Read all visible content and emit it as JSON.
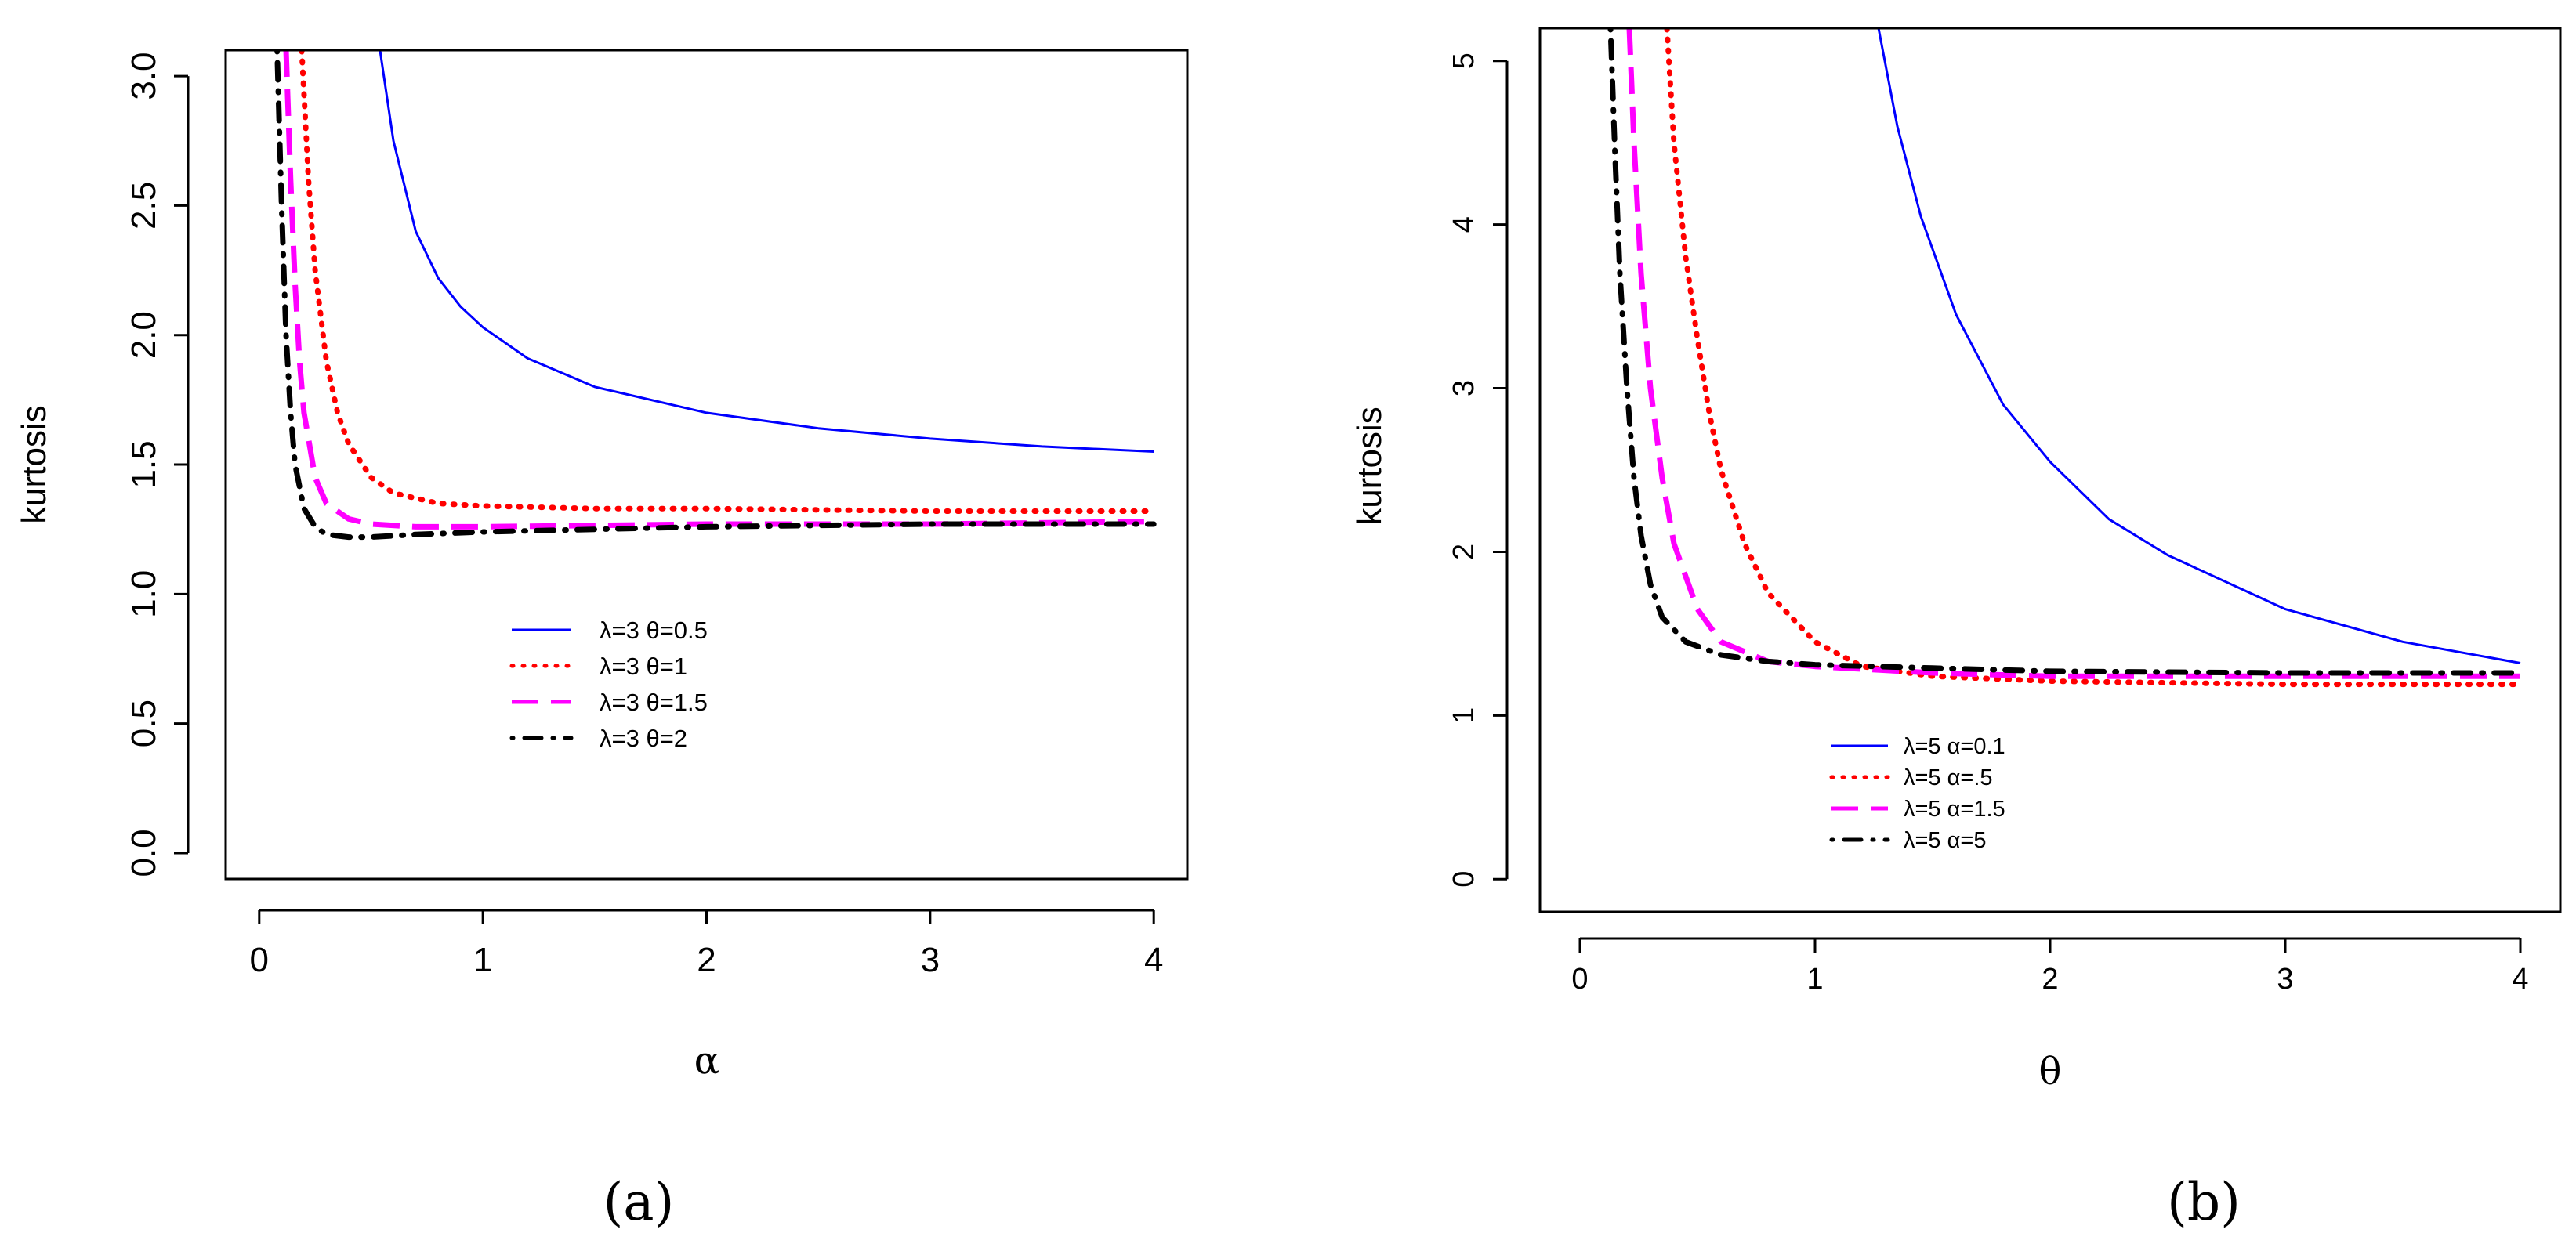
{
  "chart_data": [
    {
      "type": "line",
      "panel_label": "(a)",
      "xlabel": "α",
      "ylabel": "kurtosis",
      "xlim": [
        -0.15,
        4.15
      ],
      "ylim": [
        -0.1,
        3.1
      ],
      "xticks": [
        0,
        1,
        2,
        3,
        4
      ],
      "yticks": [
        0.0,
        0.5,
        1.0,
        1.5,
        2.0,
        2.5,
        3.0
      ],
      "ytick_labels": [
        "0.0",
        "0.5",
        "1.0",
        "1.5",
        "2.0",
        "2.5",
        "3.0"
      ],
      "legend_position": "center",
      "series": [
        {
          "name": "λ=3 θ=0.5",
          "color": "#0000ff",
          "style": "solid",
          "x": [
            0.54,
            0.6,
            0.7,
            0.8,
            0.9,
            1.0,
            1.2,
            1.5,
            2.0,
            2.5,
            3.0,
            3.5,
            4.0
          ],
          "y": [
            3.1,
            2.75,
            2.4,
            2.22,
            2.11,
            2.03,
            1.91,
            1.8,
            1.7,
            1.64,
            1.6,
            1.57,
            1.55
          ]
        },
        {
          "name": "λ=3 θ=1",
          "color": "#ff0000",
          "style": "dotted",
          "x": [
            0.19,
            0.22,
            0.25,
            0.3,
            0.35,
            0.4,
            0.5,
            0.6,
            0.8,
            1.0,
            1.5,
            2.0,
            3.0,
            4.0
          ],
          "y": [
            3.1,
            2.6,
            2.25,
            1.9,
            1.7,
            1.58,
            1.45,
            1.39,
            1.35,
            1.34,
            1.33,
            1.33,
            1.32,
            1.32
          ]
        },
        {
          "name": "λ=3 θ=1.5",
          "color": "#ff00ff",
          "style": "dashed",
          "x": [
            0.12,
            0.14,
            0.16,
            0.18,
            0.2,
            0.25,
            0.3,
            0.4,
            0.5,
            0.7,
            1.0,
            2.0,
            3.0,
            4.0
          ],
          "y": [
            3.1,
            2.6,
            2.2,
            1.9,
            1.7,
            1.45,
            1.35,
            1.29,
            1.27,
            1.26,
            1.26,
            1.27,
            1.27,
            1.28
          ]
        },
        {
          "name": "λ=3 θ=2",
          "color": "#000000",
          "style": "dotdash",
          "x": [
            0.08,
            0.1,
            0.12,
            0.14,
            0.16,
            0.2,
            0.25,
            0.3,
            0.4,
            0.5,
            0.7,
            1.0,
            2.0,
            3.0,
            4.0
          ],
          "y": [
            3.1,
            2.5,
            2.0,
            1.7,
            1.5,
            1.33,
            1.26,
            1.23,
            1.22,
            1.22,
            1.23,
            1.24,
            1.26,
            1.27,
            1.27
          ]
        }
      ]
    },
    {
      "type": "line",
      "panel_label": "(b)",
      "xlabel": "θ",
      "ylabel": "kurtosis",
      "xlim": [
        -0.17,
        4.17
      ],
      "ylim": [
        -0.2,
        5.2
      ],
      "xticks": [
        0,
        1,
        2,
        3,
        4
      ],
      "yticks": [
        0,
        1,
        2,
        3,
        4,
        5
      ],
      "ytick_labels": [
        "0",
        "1",
        "2",
        "3",
        "4",
        "5"
      ],
      "legend_position": "bottom-left",
      "series": [
        {
          "name": "λ=5 α=0.1",
          "color": "#0000ff",
          "style": "solid",
          "x": [
            1.27,
            1.35,
            1.45,
            1.6,
            1.8,
            2.0,
            2.25,
            2.5,
            3.0,
            3.5,
            4.0
          ],
          "y": [
            5.2,
            4.6,
            4.05,
            3.45,
            2.9,
            2.55,
            2.2,
            1.98,
            1.65,
            1.45,
            1.32
          ]
        },
        {
          "name": "λ=5 α=.5",
          "color": "#ff0000",
          "style": "dotted",
          "x": [
            0.37,
            0.4,
            0.45,
            0.5,
            0.55,
            0.6,
            0.7,
            0.8,
            1.0,
            1.2,
            1.5,
            2.0,
            3.0,
            4.0
          ],
          "y": [
            5.2,
            4.5,
            3.8,
            3.3,
            2.85,
            2.5,
            2.05,
            1.75,
            1.45,
            1.3,
            1.24,
            1.21,
            1.19,
            1.19
          ]
        },
        {
          "name": "λ=5 α=1.5",
          "color": "#ff00ff",
          "style": "dashed",
          "x": [
            0.21,
            0.23,
            0.26,
            0.3,
            0.35,
            0.4,
            0.5,
            0.6,
            0.8,
            1.0,
            1.5,
            2.0,
            3.0,
            4.0
          ],
          "y": [
            5.2,
            4.5,
            3.7,
            3.0,
            2.45,
            2.05,
            1.65,
            1.45,
            1.33,
            1.3,
            1.26,
            1.24,
            1.24,
            1.24
          ]
        },
        {
          "name": "λ=5 α=5",
          "color": "#000000",
          "style": "dotdash",
          "x": [
            0.13,
            0.15,
            0.17,
            0.2,
            0.23,
            0.26,
            0.3,
            0.35,
            0.45,
            0.6,
            0.8,
            1.0,
            1.5,
            2.0,
            3.0,
            4.0
          ],
          "y": [
            5.2,
            4.4,
            3.7,
            3.0,
            2.45,
            2.1,
            1.8,
            1.6,
            1.45,
            1.37,
            1.33,
            1.31,
            1.29,
            1.27,
            1.26,
            1.26
          ]
        }
      ]
    }
  ]
}
